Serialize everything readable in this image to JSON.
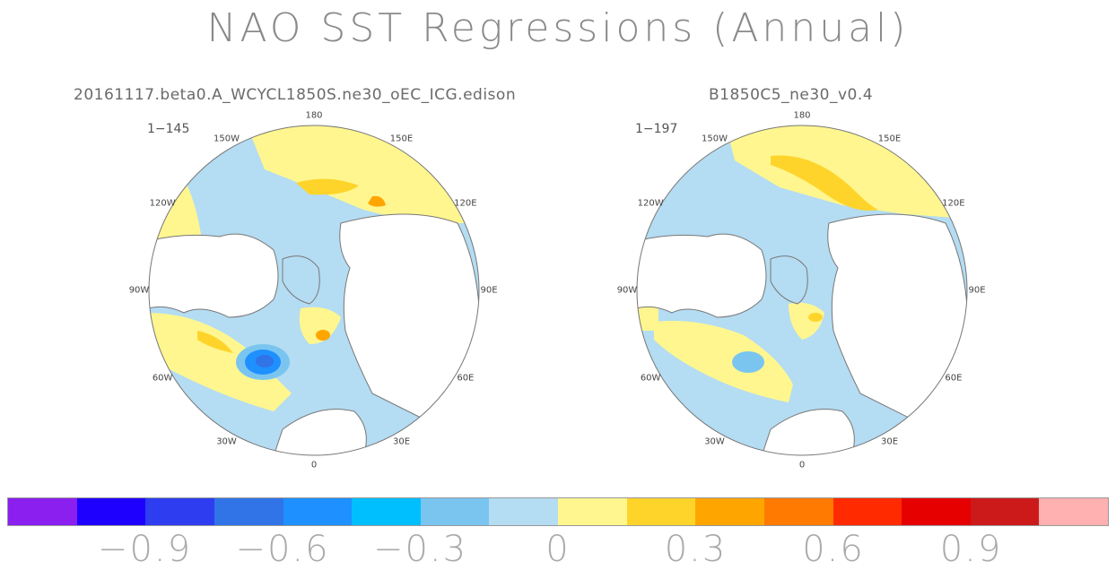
{
  "title": "NAO SST Regressions (Annual)",
  "panels": [
    {
      "title": "20161117.beta0.A_WCYCL1850S.ne30_oEC_ICG.edison",
      "range": "1−145"
    },
    {
      "title": "B1850C5_ne30_v0.4",
      "range": "1−197"
    }
  ],
  "longitude_labels": [
    "180",
    "150E",
    "120E",
    "90E",
    "60E",
    "30E",
    "0",
    "30W",
    "60W",
    "90W",
    "120W",
    "150W"
  ],
  "colorbar": {
    "colors": [
      "#8a1ff0",
      "#1e00ff",
      "#2e3df0",
      "#3074e8",
      "#1e90ff",
      "#00bfff",
      "#7ac5f0",
      "#b4dcf2",
      "#fff68f",
      "#ffd42a",
      "#ffa500",
      "#ff7a00",
      "#ff2a00",
      "#e60000",
      "#cc1a1a",
      "#ffb0b0"
    ],
    "tick_labels": [
      "−0.9",
      "−0.6",
      "−0.3",
      "0",
      "0.3",
      "0.6",
      "0.9"
    ]
  },
  "palette": {
    "land": "#ffffff",
    "coast": "#777777",
    "ocean_neg": "#b4dcf2",
    "ocean_pos": "#fff68f"
  }
}
